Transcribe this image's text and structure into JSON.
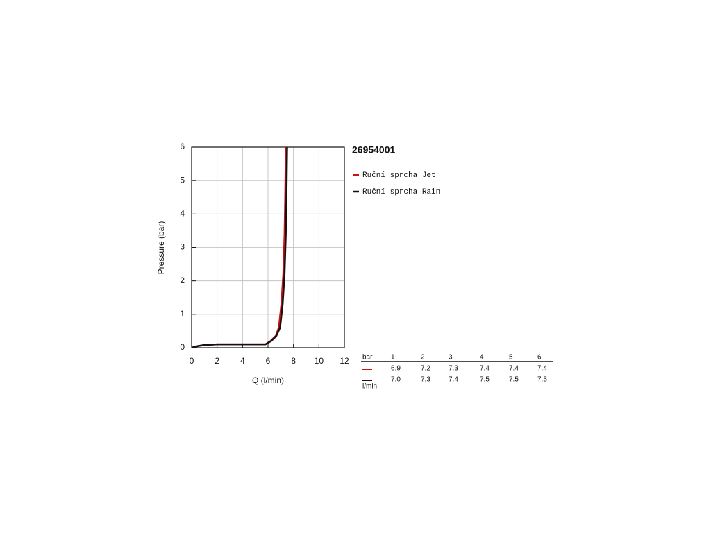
{
  "chart_data": {
    "type": "line",
    "title": "26954001",
    "xlabel": "Q (l/min)",
    "ylabel": "Pressure (bar)",
    "xlim": [
      0,
      12
    ],
    "ylim": [
      0,
      6
    ],
    "xticks": [
      0,
      2,
      4,
      6,
      8,
      10,
      12
    ],
    "yticks": [
      0,
      1,
      2,
      3,
      4,
      5,
      6
    ],
    "grid": true,
    "series": [
      {
        "name": "Ruční sprcha Jet",
        "color": "#cc1111",
        "x": [
          0,
          0.5,
          1,
          2,
          4,
          5.8,
          6.2,
          6.6,
          6.85,
          7.05,
          7.2,
          7.3,
          7.35,
          7.4
        ],
        "values": [
          0,
          0.05,
          0.08,
          0.1,
          0.1,
          0.1,
          0.2,
          0.35,
          0.6,
          1.3,
          2.2,
          3.4,
          4.5,
          6
        ]
      },
      {
        "name": "Ruční sprcha Rain",
        "color": "#111111",
        "x": [
          0,
          0.5,
          1,
          2,
          4,
          5.8,
          6.25,
          6.65,
          6.95,
          7.15,
          7.3,
          7.4,
          7.45,
          7.5
        ],
        "values": [
          0,
          0.05,
          0.08,
          0.1,
          0.1,
          0.1,
          0.2,
          0.35,
          0.6,
          1.3,
          2.2,
          3.4,
          4.5,
          6
        ]
      }
    ]
  },
  "table": {
    "header": [
      "bar",
      1,
      2,
      3,
      4,
      5,
      6
    ],
    "rows": [
      [
        "6.9",
        "7.2",
        "7.3",
        "7.4",
        "7.4",
        "7.4"
      ],
      [
        "7.0",
        "7.3",
        "7.4",
        "7.5",
        "7.5",
        "7.5"
      ]
    ],
    "unit": "l/min"
  }
}
